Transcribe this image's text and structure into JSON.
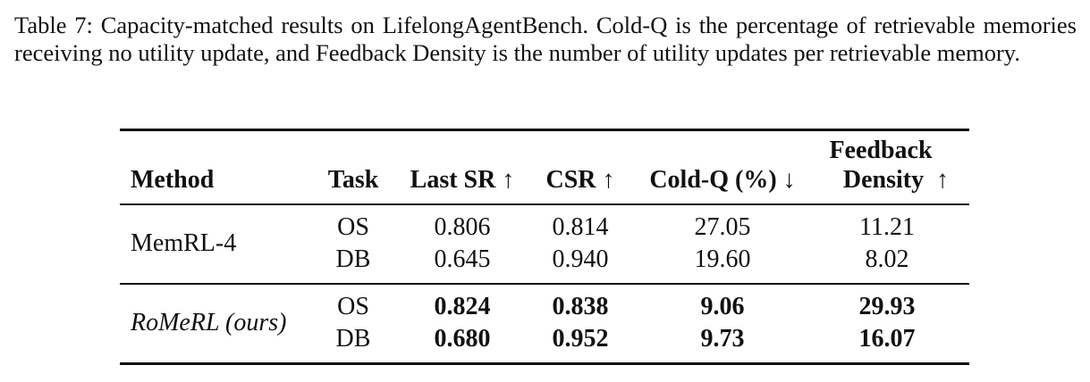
{
  "caption": "Table 7: Capacity-matched results on LifelongAgentBench. Cold-Q is the percentage of retrievable memories receiving no utility update, and Feedback Density is the number of utility updates per retrievable memory.",
  "table": {
    "headers": {
      "method": "Method",
      "task": "Task",
      "last_sr": "Last SR ↑",
      "csr": "CSR ↑",
      "cold_q": "Cold-Q (%) ↓",
      "feedback_line1": "Feedback",
      "feedback_line2": "Density  ↑"
    },
    "groups": [
      {
        "method": "MemRL-4",
        "rows": [
          {
            "task": "OS",
            "last_sr": "0.806",
            "csr": "0.814",
            "cold_q": "27.05",
            "feedback_density": "11.21"
          },
          {
            "task": "DB",
            "last_sr": "0.645",
            "csr": "0.940",
            "cold_q": "19.60",
            "feedback_density": "8.02"
          }
        ]
      },
      {
        "method": "RoMeRL (ours)",
        "rows": [
          {
            "task": "OS",
            "last_sr": "0.824",
            "csr": "0.838",
            "cold_q": "9.06",
            "feedback_density": "29.93"
          },
          {
            "task": "DB",
            "last_sr": "0.680",
            "csr": "0.952",
            "cold_q": "9.73",
            "feedback_density": "16.07"
          }
        ]
      }
    ]
  }
}
